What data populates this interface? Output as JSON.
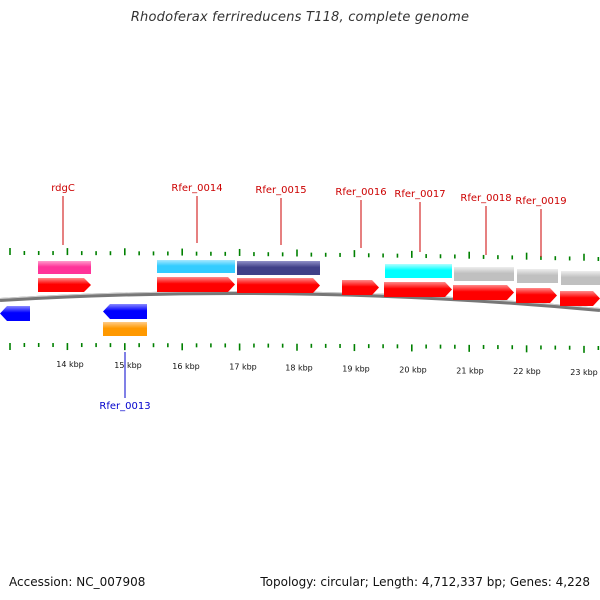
{
  "title": "Rhodoferax ferrireducens T118, complete genome",
  "footer": {
    "accession": "Accession: NC_007908",
    "summary": "Topology: circular; Length: 4,712,337 bp; Genes: 4,228"
  },
  "colors": {
    "forward_gene": "#ff0000",
    "reverse_gene": "#0000ff",
    "cds_pink": "#ff3399",
    "cds_cyan_light": "#33ccff",
    "cds_navy": "#404088",
    "cds_cyan": "#00ffff",
    "cds_gray": "#c0c0c0",
    "cds_orange": "#ff9900",
    "tick": "#008000",
    "label_top": "#cc0000",
    "label_bottom": "#0000cc"
  },
  "kbp_labels": [
    "14 kbp",
    "15 kbp",
    "16 kbp",
    "17 kbp",
    "18 kbp",
    "19 kbp",
    "20 kbp",
    "21 kbp",
    "22 kbp",
    "23 kbp"
  ],
  "gene_labels": {
    "top": [
      "rdgC",
      "Rfer_0014",
      "Rfer_0015",
      "Rfer_0016",
      "Rfer_0017",
      "Rfer_0018",
      "Rfer_0019"
    ],
    "bottom": [
      "Rfer_0013"
    ]
  }
}
